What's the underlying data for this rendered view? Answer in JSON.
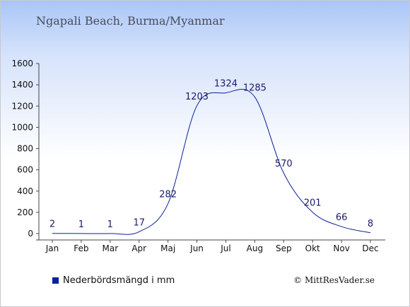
{
  "chart_data": {
    "type": "line",
    "title": "Ngapali Beach, Burma/Myanmar",
    "xlabel": "",
    "ylabel": "",
    "categories": [
      "Jan",
      "Feb",
      "Mar",
      "Apr",
      "Maj",
      "Jun",
      "Jul",
      "Aug",
      "Sep",
      "Okt",
      "Nov",
      "Dec"
    ],
    "series": [
      {
        "name": "Nederbördsmängd i mm",
        "values": [
          2,
          1,
          1,
          17,
          282,
          1203,
          1324,
          1285,
          570,
          201,
          66,
          8
        ],
        "labels": [
          "2",
          "1",
          "1",
          "17",
          "282",
          "1203",
          "1324",
          "1285",
          "570",
          "201",
          "66",
          "8"
        ]
      }
    ],
    "ylim": [
      0,
      1600
    ],
    "yticks": [
      0,
      200,
      400,
      600,
      800,
      1000,
      1200,
      1400,
      1600
    ],
    "grid": false,
    "legend": "bottom-left",
    "colors": {
      "line": "#0a1f9e",
      "label": "#1a1a66"
    }
  },
  "copyright": "© MittResVader.se"
}
